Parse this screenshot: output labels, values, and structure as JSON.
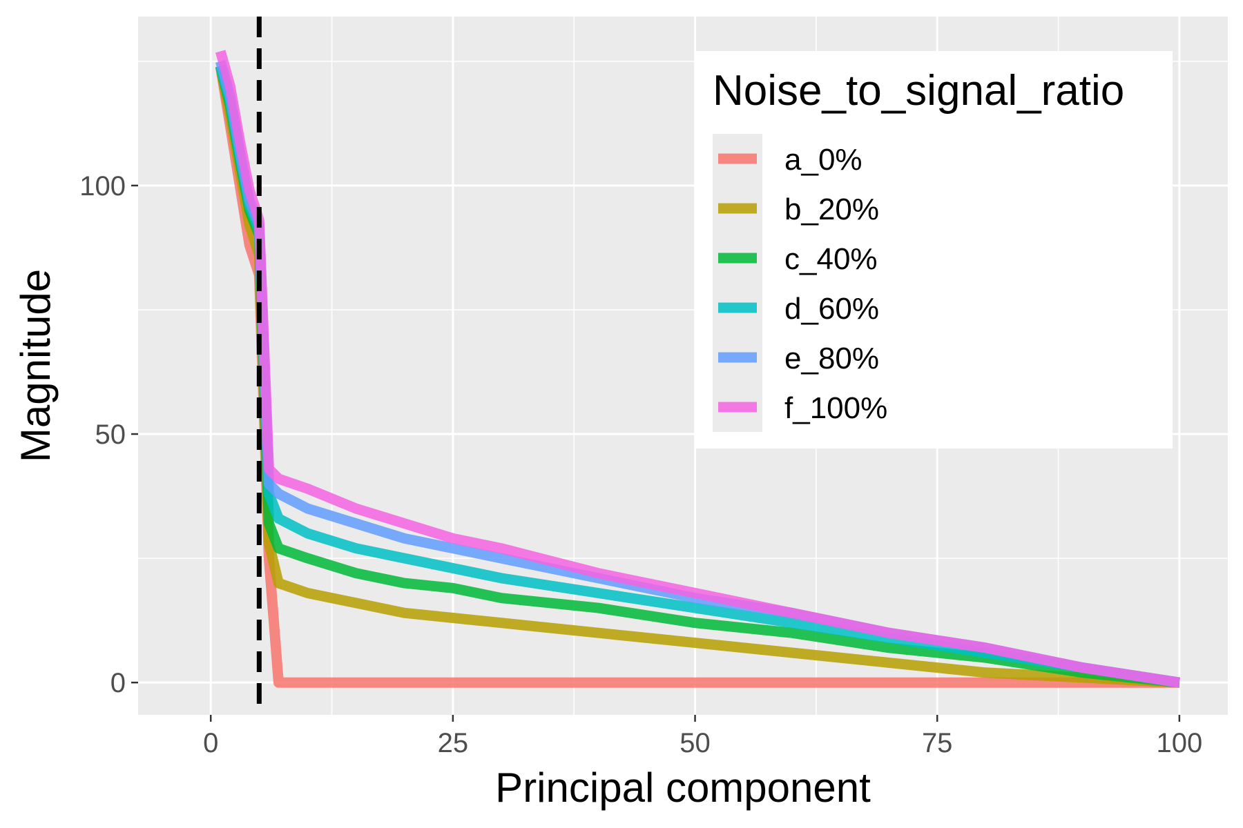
{
  "chart_data": {
    "type": "line",
    "xlabel": "Principal component",
    "ylabel": "Magnitude",
    "xlim": [
      -7.5,
      105
    ],
    "ylim": [
      -6.5,
      134
    ],
    "x_ticks": [
      0,
      25,
      50,
      75,
      100
    ],
    "x_tick_labels": [
      "0",
      "25",
      "50",
      "75",
      "100"
    ],
    "y_ticks": [
      0,
      50,
      100
    ],
    "y_tick_labels": [
      "0",
      "50",
      "100"
    ],
    "grid": true,
    "legend": {
      "title": "Noise_to_signal_ratio",
      "placement": "top-right"
    },
    "reference_line": {
      "orientation": "vertical",
      "x": 5,
      "style": "dashed",
      "color": "#000000"
    },
    "series": [
      {
        "name": "a_0%",
        "color": "#F8766D",
        "x": [
          1,
          2,
          3,
          4,
          5,
          6,
          7,
          100
        ],
        "y": [
          124,
          112,
          100,
          88,
          82,
          25,
          0,
          0
        ]
      },
      {
        "name": "b_20%",
        "color": "#B79F00",
        "x": [
          1,
          2,
          3,
          4,
          5,
          6,
          7,
          10,
          15,
          20,
          25,
          30,
          40,
          50,
          60,
          70,
          80,
          90,
          100
        ],
        "y": [
          124,
          114,
          103,
          92,
          86,
          28,
          20,
          18,
          16,
          14,
          13,
          12,
          10,
          8,
          6,
          4,
          2,
          1,
          0
        ]
      },
      {
        "name": "c_40%",
        "color": "#00BA38",
        "x": [
          1,
          2,
          3,
          4,
          5,
          6,
          7,
          10,
          15,
          20,
          25,
          30,
          40,
          50,
          60,
          70,
          80,
          90,
          100
        ],
        "y": [
          124,
          116,
          105,
          95,
          90,
          32,
          27,
          25,
          22,
          20,
          19,
          17,
          15,
          12,
          10,
          7,
          5,
          2,
          0
        ]
      },
      {
        "name": "d_60%",
        "color": "#00BFC4",
        "x": [
          1,
          2,
          3,
          4,
          5,
          6,
          7,
          10,
          15,
          20,
          25,
          30,
          40,
          50,
          60,
          70,
          80,
          90,
          100
        ],
        "y": [
          124,
          117,
          106,
          96,
          91,
          38,
          33,
          30,
          27,
          25,
          23,
          21,
          18,
          15,
          12,
          9,
          6,
          3,
          0
        ]
      },
      {
        "name": "e_80%",
        "color": "#619CFF",
        "x": [
          1,
          2,
          3,
          4,
          5,
          6,
          7,
          10,
          15,
          20,
          25,
          30,
          40,
          50,
          60,
          70,
          80,
          90,
          100
        ],
        "y": [
          125,
          118,
          107,
          97,
          92,
          40,
          38,
          35,
          32,
          29,
          27,
          25,
          21,
          17,
          14,
          10,
          7,
          3,
          0
        ]
      },
      {
        "name": "f_100%",
        "color": "#F564E3",
        "x": [
          1,
          2,
          3,
          4,
          5,
          6,
          7,
          10,
          15,
          20,
          25,
          30,
          40,
          50,
          60,
          70,
          80,
          90,
          100
        ],
        "y": [
          127,
          120,
          109,
          99,
          93,
          43,
          41,
          39,
          35,
          32,
          29,
          27,
          22,
          18,
          14,
          10,
          7,
          3,
          0
        ]
      }
    ]
  }
}
